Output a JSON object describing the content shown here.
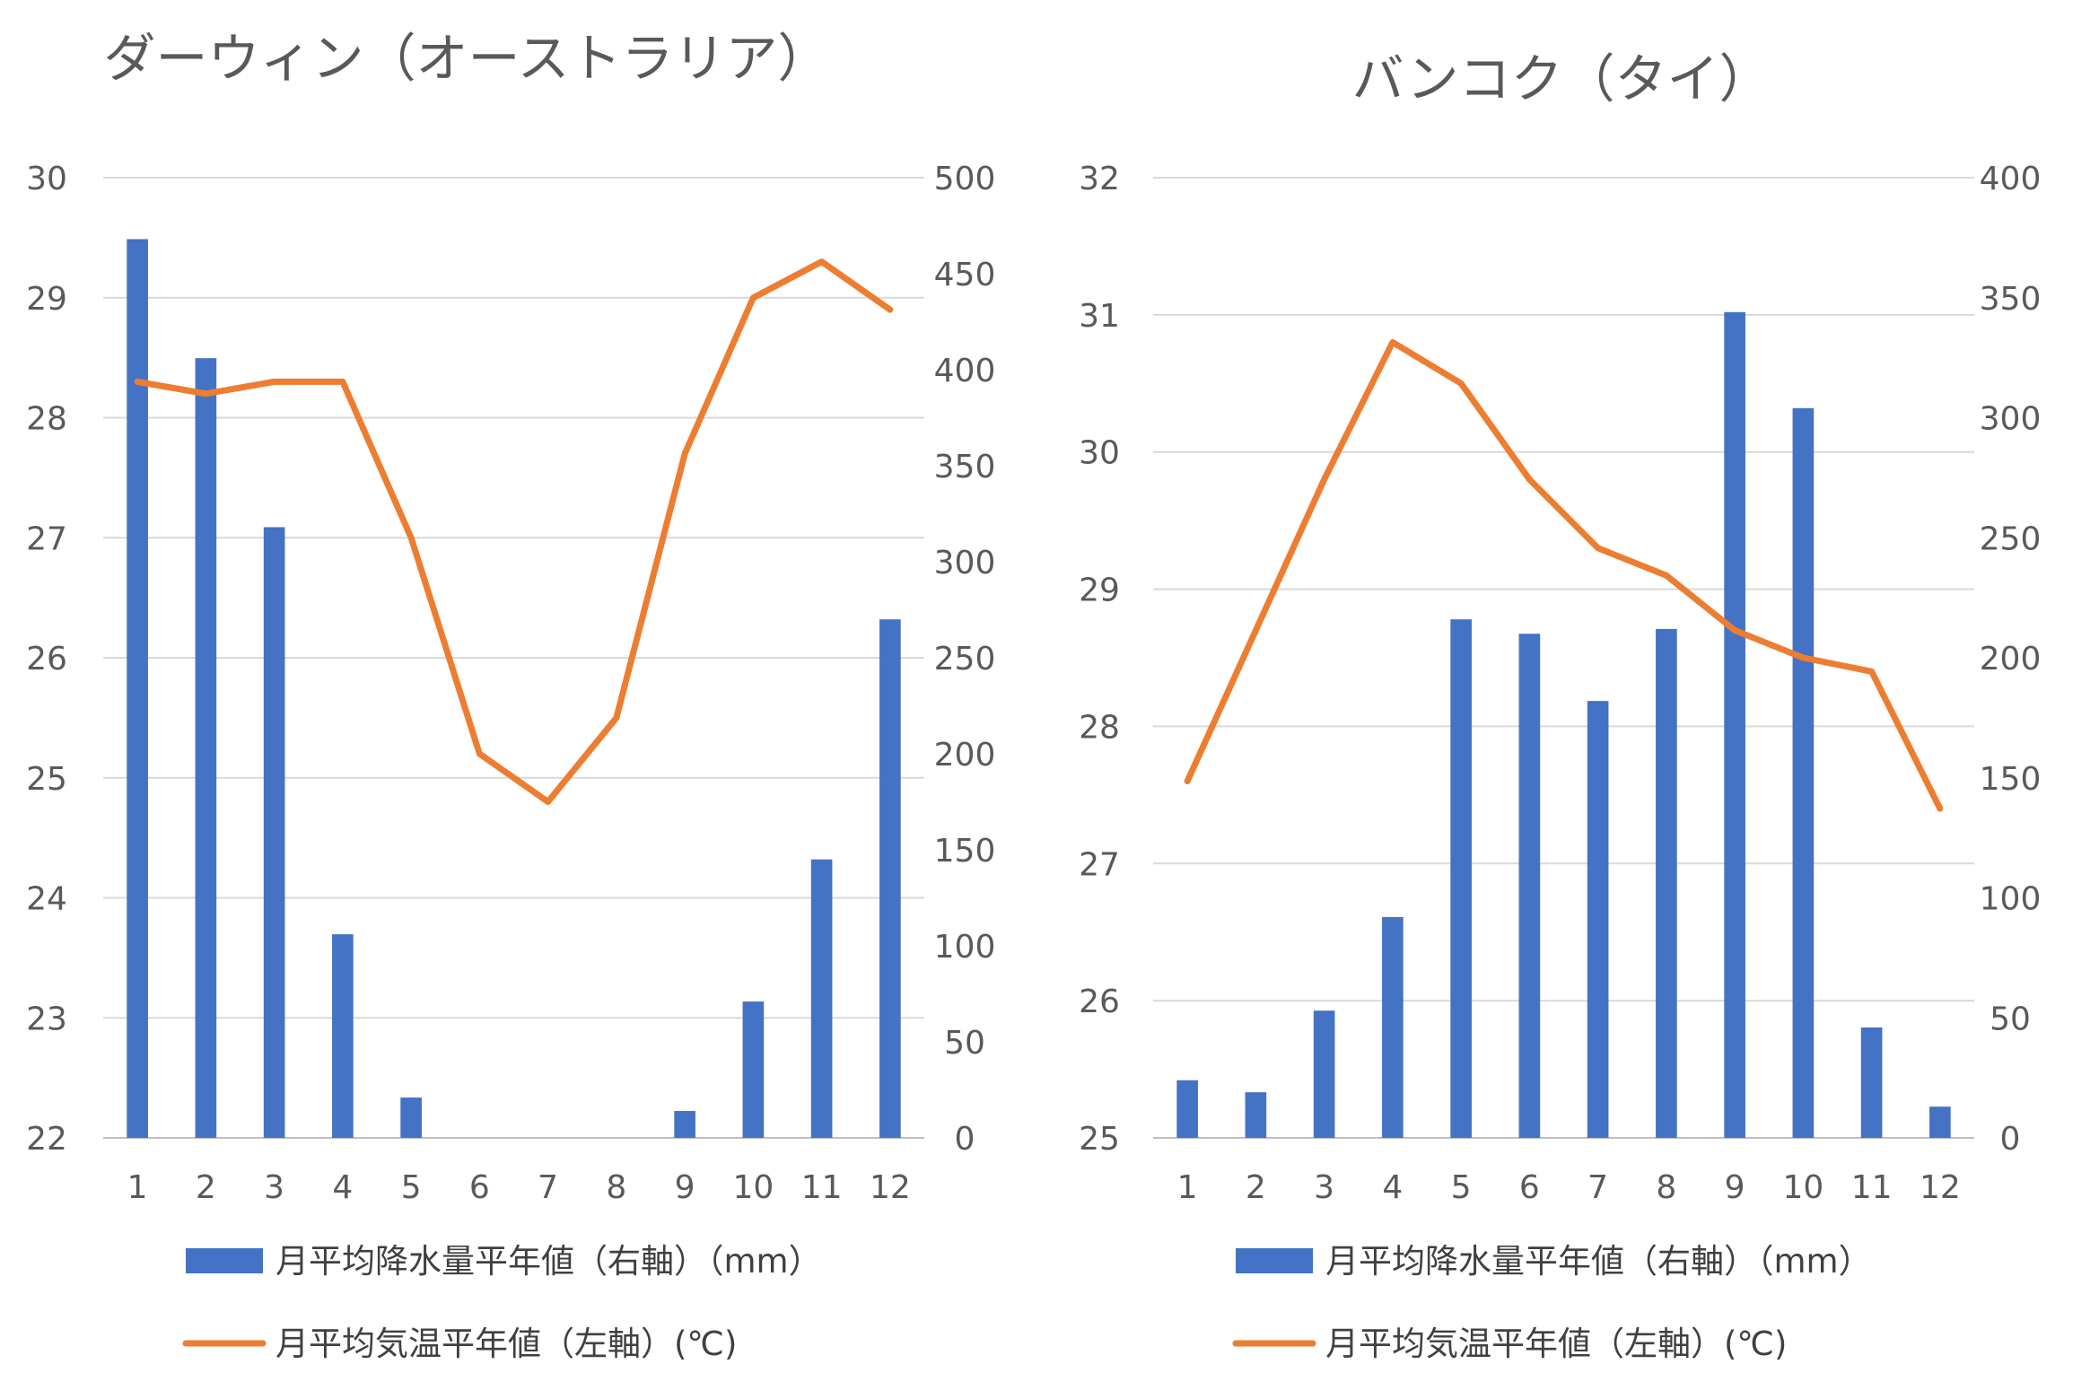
{
  "colors": {
    "bar": "#4472C4",
    "line": "#ED7D31",
    "grid": "#D9D9D9",
    "text": "#595959"
  },
  "chart_data": [
    {
      "type": "bar+line",
      "title": "ダーウィン（オーストラリア）",
      "categories": [
        "1",
        "2",
        "3",
        "4",
        "5",
        "6",
        "7",
        "8",
        "9",
        "10",
        "11",
        "12"
      ],
      "series": [
        {
          "name": "月平均降水量平年値（右軸）（mm）",
          "kind": "bar",
          "axis": "right",
          "values": [
            468,
            406,
            318,
            106,
            21,
            0,
            0,
            0,
            14,
            71,
            145,
            270
          ]
        },
        {
          "name": "月平均気温平年値（左軸）(℃)",
          "kind": "line",
          "axis": "left",
          "values": [
            28.3,
            28.2,
            28.3,
            28.3,
            27.0,
            25.2,
            24.8,
            25.5,
            27.7,
            29.0,
            29.3,
            28.9
          ]
        }
      ],
      "y_left": {
        "min": 22,
        "max": 30,
        "step": 1,
        "ticks": [
          "22",
          "23",
          "24",
          "25",
          "26",
          "27",
          "28",
          "29",
          "30"
        ]
      },
      "y_right": {
        "min": 0,
        "max": 500,
        "step": 50,
        "ticks": [
          "0",
          "50",
          "100",
          "150",
          "200",
          "250",
          "300",
          "350",
          "400",
          "450",
          "500"
        ]
      },
      "legend": [
        {
          "label": "月平均降水量平年値（右軸）（mm）",
          "kind": "bar"
        },
        {
          "label": "月平均気温平年値（左軸）(℃)",
          "kind": "line"
        }
      ],
      "legend_position": "bottom",
      "grid": true
    },
    {
      "type": "bar+line",
      "title": "バンコク（タイ）",
      "categories": [
        "1",
        "2",
        "3",
        "4",
        "5",
        "6",
        "7",
        "8",
        "9",
        "10",
        "11",
        "12"
      ],
      "series": [
        {
          "name": "月平均降水量平年値（右軸）（mm）",
          "kind": "bar",
          "axis": "right",
          "values": [
            24,
            19,
            53,
            92,
            216,
            210,
            182,
            212,
            344,
            304,
            46,
            13
          ]
        },
        {
          "name": "月平均気温平年値（左軸）(℃)",
          "kind": "line",
          "axis": "left",
          "values": [
            27.6,
            28.7,
            29.8,
            30.8,
            30.5,
            29.8,
            29.3,
            29.1,
            28.7,
            28.5,
            28.4,
            27.4
          ]
        }
      ],
      "y_left": {
        "min": 25,
        "max": 32,
        "step": 1,
        "ticks": [
          "25",
          "26",
          "27",
          "28",
          "29",
          "30",
          "31",
          "32"
        ]
      },
      "y_right": {
        "min": 0,
        "max": 400,
        "step": 50,
        "ticks": [
          "0",
          "50",
          "100",
          "150",
          "200",
          "250",
          "300",
          "350",
          "400"
        ]
      },
      "legend": [
        {
          "label": "月平均降水量平年値（右軸）（mm）",
          "kind": "bar"
        },
        {
          "label": "月平均気温平年値（左軸）(℃)",
          "kind": "line"
        }
      ],
      "legend_position": "bottom",
      "grid": true
    }
  ]
}
